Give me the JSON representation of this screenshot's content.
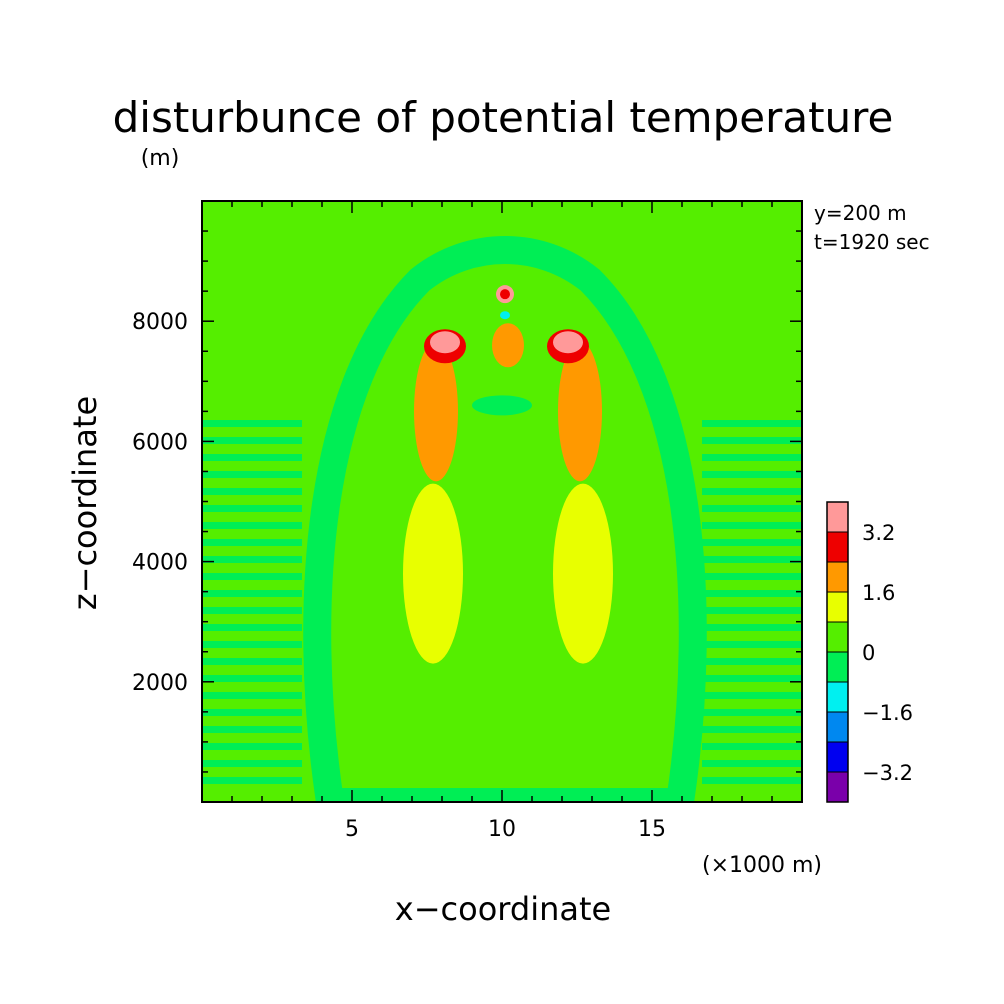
{
  "chart_data": {
    "type": "heatmap",
    "title": "disturbunce of potential temperature",
    "xlabel": "x−coordinate",
    "ylabel": "z−coordinate",
    "x_unit": "(×1000 m)",
    "y_unit": "(m)",
    "annotations": [
      "y=200 m",
      "t=1920 sec"
    ],
    "xlim": [
      0,
      20
    ],
    "ylim": [
      0,
      10000
    ],
    "x_ticks": [
      5,
      10,
      15
    ],
    "y_ticks": [
      2000,
      4000,
      6000,
      8000
    ],
    "legend_placement": "right",
    "colorbar": {
      "levels": [
        -4.0,
        -3.2,
        -2.4,
        -1.6,
        -0.8,
        0,
        0.8,
        1.6,
        2.4,
        3.2,
        4.0
      ],
      "colors": [
        "#7a00aa",
        "#0000f0",
        "#0088f0",
        "#00f0f0",
        "#00ee55",
        "#55ee00",
        "#e8ff00",
        "#ff9900",
        "#ee0000",
        "#ff9999"
      ],
      "tick_labels": [
        "−3.2",
        "−1.6",
        "0",
        "1.6",
        "3.2"
      ]
    },
    "background_value": 0.2,
    "features": [
      {
        "name": "left thermal band",
        "x": 7.7,
        "z": 3800,
        "value": 1.2
      },
      {
        "name": "right thermal band",
        "x": 12.7,
        "z": 3800,
        "value": 1.2
      },
      {
        "name": "left lobe core",
        "x": 7.8,
        "z": 6500,
        "value": 2.0
      },
      {
        "name": "right lobe core",
        "x": 12.6,
        "z": 6500,
        "value": 2.0
      },
      {
        "name": "left cap maximum",
        "x": 8.1,
        "z": 7650,
        "value": 4.0
      },
      {
        "name": "right cap maximum",
        "x": 12.2,
        "z": 7650,
        "value": 4.0
      },
      {
        "name": "top peak",
        "x": 10.1,
        "z": 8450,
        "value": 2.8
      },
      {
        "name": "central cap",
        "x": 10.2,
        "z": 7600,
        "value": 2.0
      },
      {
        "name": "central wedge",
        "x": 10.0,
        "z": 6600,
        "value": -0.4
      },
      {
        "name": "dip below top peak",
        "x": 10.1,
        "z": 8100,
        "value": -1.2
      }
    ]
  }
}
